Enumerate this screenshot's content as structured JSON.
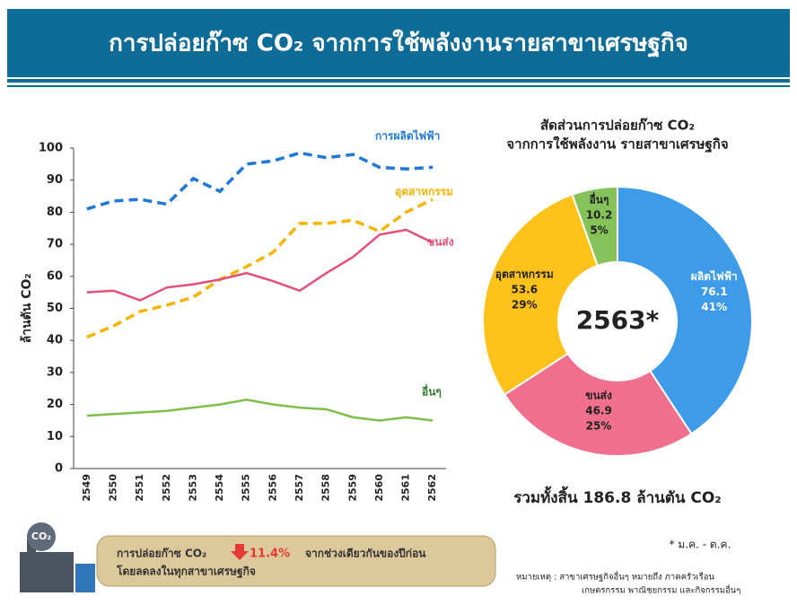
{
  "header": {
    "title": "การปล่อยก๊าซ CO₂ จากการใช้พลังงานรายสาขาเศรษฐกิจ"
  },
  "chart_data": [
    {
      "type": "line",
      "y_label": "ล้านตัน CO₂",
      "categories": [
        "2549",
        "2550",
        "2551",
        "2552",
        "2553",
        "2554",
        "2555",
        "2556",
        "2557",
        "2558",
        "2559",
        "2560",
        "2561",
        "2562"
      ],
      "ylim": [
        0,
        100
      ],
      "yticks": [
        0,
        10,
        20,
        30,
        40,
        50,
        60,
        70,
        80,
        90,
        100
      ],
      "series": [
        {
          "name": "การผลิตไฟฟ้า",
          "color": "#1f78d8",
          "line_style": "dashed",
          "values": [
            81,
            83.5,
            84,
            82.5,
            90.5,
            86.5,
            95,
            96,
            98.5,
            97,
            98,
            94,
            93.5,
            94
          ]
        },
        {
          "name": "อุตสาหกรรม",
          "color": "#f5b400",
          "line_style": "dashed",
          "values": [
            41,
            44.5,
            49,
            51,
            53.5,
            59,
            63,
            67.5,
            76.5,
            76.5,
            77.5,
            74,
            80,
            84
          ]
        },
        {
          "name": "ขนส่ง",
          "color": "#e2507a",
          "line_style": "solid",
          "values": [
            55,
            55.5,
            52.5,
            56.5,
            57.5,
            59,
            61,
            58.5,
            55.5,
            61,
            66,
            73,
            74.5,
            70.5
          ]
        },
        {
          "name": "อื่นๆ",
          "color": "#7cc04a",
          "line_style": "solid",
          "values": [
            16.5,
            17,
            17.5,
            18,
            19,
            20,
            21.5,
            20,
            19,
            18.5,
            16,
            15,
            16,
            15
          ]
        }
      ]
    },
    {
      "type": "donut",
      "title": [
        "สัดส่วนการปล่อยก๊าซ CO₂",
        "จากการใช้พลังงาน รายสาขาเศรษฐกิจ"
      ],
      "center_label": "2563*",
      "categories": [
        "ผลิตไฟฟ้า",
        "ขนส่ง",
        "อุตสาหกรรม",
        "อื่นๆ"
      ],
      "values": [
        76.1,
        46.9,
        53.6,
        10.2
      ],
      "percent_labels": [
        "41%",
        "25%",
        "29%",
        "5%"
      ],
      "colors": [
        "#3d9be9",
        "#ef6f8c",
        "#ffc21a",
        "#86c25a"
      ],
      "total_label": "รวมทั้งสิ้น 186.8 ล้านตัน CO₂"
    }
  ],
  "summary": {
    "prefix": "การปล่อยก๊าซ CO₂",
    "change": "11.4%",
    "suffix": "จากช่วงเดียวกันของปีก่อน",
    "line2": "โดยลดลงในทุกสาขาเศรษฐกิจ"
  },
  "notes": {
    "period": "* ม.ค. - ต.ค.",
    "remark": "หมายเหตุ : สาขาเศรษฐกิจอื่นๆ หมายถึง ภาคครัวเรือน",
    "remark2": "เกษตรกรรม พาณิชยกรรม และกิจกรรมอื่นๆ"
  }
}
